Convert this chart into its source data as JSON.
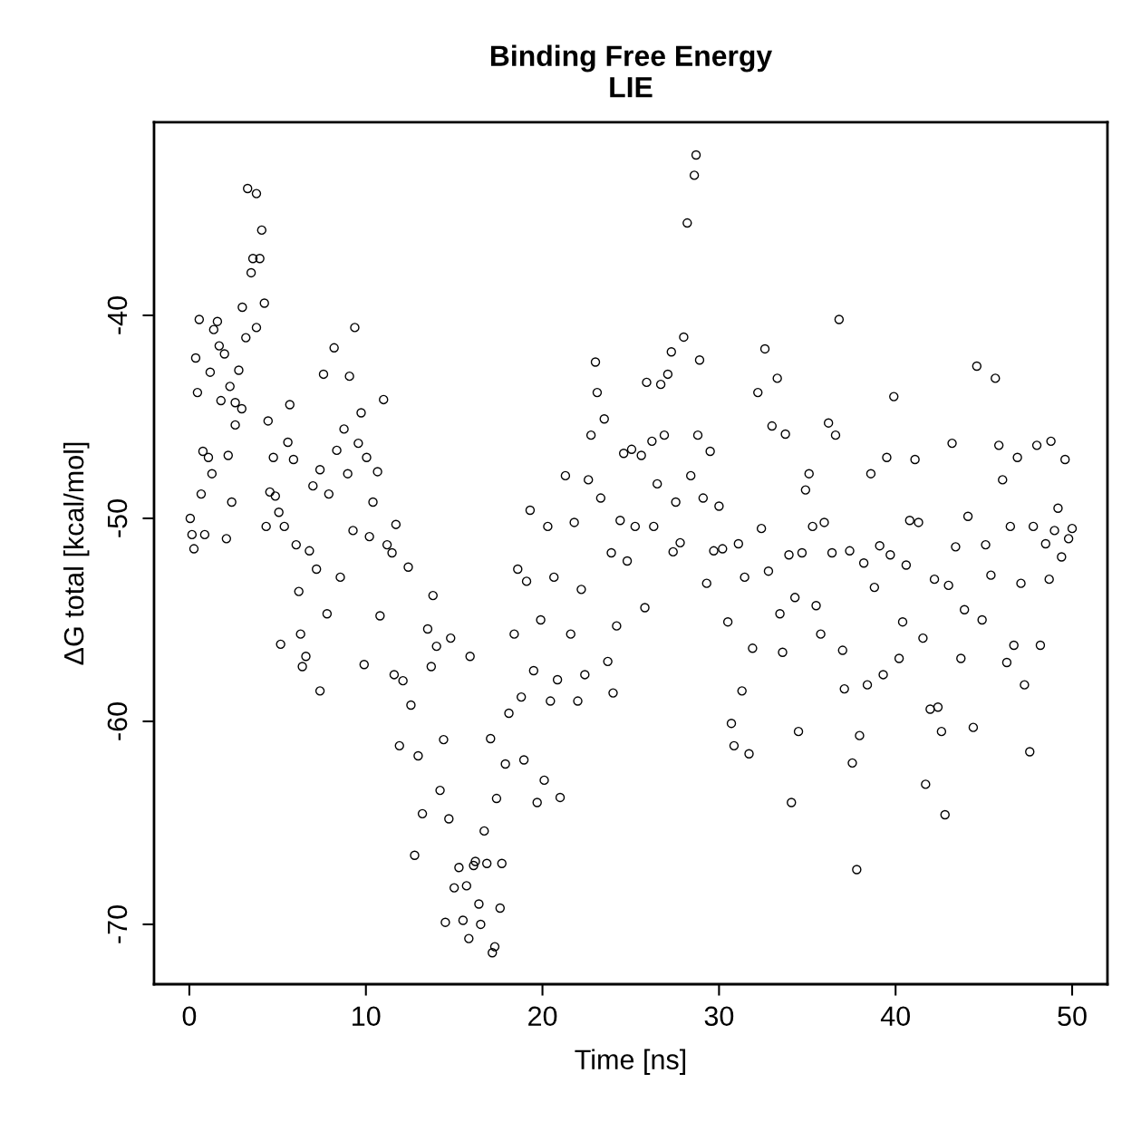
{
  "chart_data": {
    "type": "scatter",
    "title": "Binding Free Energy\nLIE",
    "xlabel": "Time [ns]",
    "ylabel": "ΔG total [kcal/mol]",
    "xlim": [
      -2,
      52
    ],
    "ylim": [
      -72.95,
      -30.49
    ],
    "xticks": [
      0,
      10,
      20,
      30,
      40,
      50
    ],
    "yticks": [
      {
        "value": -70,
        "label": "-70"
      },
      {
        "value": -60,
        "label": "-60"
      },
      {
        "value": -50,
        "label": "-50"
      },
      {
        "value": -40,
        "label": "-40"
      }
    ],
    "marker": "circle",
    "grid": false,
    "series": [
      {
        "color": "#000000",
        "x": [
          0.05,
          0.15,
          0.26,
          0.36,
          0.46,
          0.56,
          0.67,
          0.77,
          0.87,
          1.08,
          1.18,
          1.28,
          1.38,
          1.59,
          1.69,
          1.79,
          1.99,
          2.1,
          2.2,
          2.3,
          2.4,
          2.6,
          2.6,
          2.8,
          2.97,
          3.0,
          3.2,
          3.3,
          3.5,
          3.6,
          3.8,
          3.8,
          3.99,
          4.1,
          4.25,
          4.35,
          4.46,
          4.56,
          4.76,
          4.87,
          5.07,
          5.17,
          5.38,
          5.58,
          5.69,
          5.9,
          6.05,
          6.2,
          6.3,
          6.4,
          6.6,
          6.8,
          7.0,
          7.2,
          7.4,
          7.4,
          7.6,
          7.8,
          7.9,
          8.2,
          8.35,
          8.55,
          8.76,
          8.97,
          9.07,
          9.27,
          9.37,
          9.57,
          9.73,
          9.9,
          10.04,
          10.2,
          10.4,
          10.66,
          10.8,
          11.0,
          11.2,
          11.48,
          11.7,
          11.6,
          11.9,
          12.1,
          12.4,
          12.55,
          12.76,
          12.96,
          13.2,
          13.5,
          13.7,
          13.8,
          14.0,
          14.2,
          14.4,
          14.5,
          14.7,
          14.8,
          15.0,
          15.27,
          15.5,
          15.7,
          15.83,
          15.9,
          16.1,
          16.2,
          16.4,
          16.5,
          16.7,
          16.85,
          17.06,
          17.16,
          17.3,
          17.4,
          17.6,
          17.7,
          17.9,
          18.1,
          18.4,
          18.6,
          18.8,
          18.95,
          19.1,
          19.3,
          19.5,
          19.7,
          19.9,
          20.1,
          20.3,
          20.45,
          20.65,
          20.85,
          21.0,
          21.3,
          21.6,
          21.8,
          22.0,
          22.2,
          22.4,
          22.6,
          22.75,
          23.0,
          23.1,
          23.3,
          23.5,
          23.7,
          23.9,
          24.0,
          24.2,
          24.4,
          24.6,
          24.8,
          25.05,
          25.25,
          25.6,
          25.8,
          25.9,
          26.2,
          26.3,
          26.5,
          26.7,
          26.9,
          27.1,
          27.3,
          27.4,
          27.55,
          27.8,
          28.0,
          28.2,
          28.4,
          28.6,
          28.7,
          28.8,
          28.9,
          29.1,
          29.3,
          29.5,
          29.7,
          30.0,
          30.2,
          30.5,
          30.7,
          30.85,
          31.1,
          31.3,
          31.45,
          31.7,
          31.9,
          32.2,
          32.4,
          32.6,
          32.8,
          33.0,
          33.3,
          33.45,
          33.6,
          33.76,
          33.96,
          34.1,
          34.3,
          34.5,
          34.7,
          34.9,
          35.1,
          35.3,
          35.5,
          35.76,
          35.96,
          36.2,
          36.4,
          36.6,
          36.8,
          37.0,
          37.1,
          37.4,
          37.55,
          37.8,
          37.96,
          38.2,
          38.4,
          38.6,
          38.8,
          39.1,
          39.3,
          39.5,
          39.7,
          39.9,
          40.2,
          40.4,
          40.6,
          40.8,
          41.1,
          41.3,
          41.55,
          41.7,
          41.96,
          42.2,
          42.4,
          42.6,
          42.8,
          43.0,
          43.2,
          43.4,
          43.7,
          43.9,
          44.1,
          44.4,
          44.6,
          44.9,
          45.1,
          45.4,
          45.65,
          45.85,
          46.06,
          46.3,
          46.5,
          46.7,
          46.9,
          47.1,
          47.3,
          47.6,
          47.8,
          48.0,
          48.2,
          48.5,
          48.7,
          48.8,
          49.0,
          49.2,
          49.4,
          49.6,
          49.8,
          50.0
        ],
        "values": [
          -50.0,
          -50.8,
          -51.5,
          -42.1,
          -43.8,
          -40.2,
          -48.8,
          -46.7,
          -50.8,
          -47.0,
          -42.8,
          -47.8,
          -40.7,
          -40.3,
          -41.5,
          -44.2,
          -41.9,
          -51.0,
          -46.9,
          -43.5,
          -49.2,
          -44.3,
          -45.4,
          -42.7,
          -44.6,
          -39.6,
          -41.1,
          -33.75,
          -37.9,
          -37.2,
          -34.0,
          -40.6,
          -37.2,
          -35.8,
          -39.4,
          -50.4,
          -45.2,
          -48.7,
          -47.0,
          -48.9,
          -49.7,
          -56.2,
          -50.4,
          -46.25,
          -44.4,
          -47.1,
          -51.3,
          -53.6,
          -55.7,
          -57.3,
          -56.8,
          -51.6,
          -48.4,
          -52.5,
          -58.5,
          -47.6,
          -42.9,
          -54.7,
          -48.8,
          -41.6,
          -46.65,
          -52.9,
          -45.6,
          -47.8,
          -43.0,
          -50.6,
          -40.6,
          -46.3,
          -44.8,
          -57.2,
          -47.0,
          -50.9,
          -49.2,
          -47.7,
          -54.8,
          -44.15,
          -51.3,
          -51.7,
          -50.3,
          -57.7,
          -61.2,
          -58.0,
          -52.4,
          -59.2,
          -66.6,
          -61.7,
          -64.55,
          -55.45,
          -57.3,
          -53.8,
          -56.3,
          -63.4,
          -60.9,
          -69.9,
          -64.8,
          -55.9,
          -68.2,
          -67.2,
          -69.8,
          -68.1,
          -70.7,
          -56.8,
          -67.1,
          -66.9,
          -69.0,
          -70.0,
          -65.4,
          -67.0,
          -60.85,
          -71.4,
          -71.1,
          -63.8,
          -69.2,
          -67.0,
          -62.1,
          -59.6,
          -55.7,
          -52.5,
          -58.8,
          -61.9,
          -53.1,
          -49.6,
          -57.5,
          -64.0,
          -55.0,
          -62.9,
          -50.4,
          -59.0,
          -52.9,
          -57.95,
          -63.75,
          -47.9,
          -55.7,
          -50.2,
          -59.0,
          -53.5,
          -57.7,
          -48.1,
          -45.9,
          -42.3,
          -43.8,
          -49.0,
          -45.1,
          -57.05,
          -51.7,
          -58.6,
          -55.3,
          -50.1,
          -46.8,
          -52.1,
          -46.6,
          -50.4,
          -46.9,
          -54.4,
          -43.3,
          -46.2,
          -50.4,
          -48.3,
          -43.4,
          -45.9,
          -42.9,
          -41.8,
          -51.65,
          -49.2,
          -51.2,
          -41.07,
          -35.45,
          -47.9,
          -33.1,
          -32.1,
          -45.9,
          -42.2,
          -49.0,
          -53.2,
          -46.7,
          -51.6,
          -49.4,
          -51.5,
          -55.1,
          -60.1,
          -61.2,
          -51.25,
          -58.5,
          -52.9,
          -61.6,
          -56.4,
          -43.8,
          -50.5,
          -41.65,
          -52.6,
          -45.45,
          -43.1,
          -54.7,
          -56.6,
          -45.85,
          -51.8,
          -64.0,
          -53.9,
          -60.5,
          -51.7,
          -48.6,
          -47.8,
          -50.4,
          -54.3,
          -55.7,
          -50.2,
          -45.3,
          -51.7,
          -45.9,
          -40.2,
          -56.5,
          -58.4,
          -51.6,
          -62.05,
          -67.3,
          -60.7,
          -52.2,
          -58.2,
          -47.8,
          -53.4,
          -51.35,
          -57.7,
          -47.0,
          -51.8,
          -44.0,
          -56.9,
          -55.1,
          -52.3,
          -50.1,
          -47.1,
          -50.2,
          -55.9,
          -63.1,
          -59.4,
          -53.0,
          -59.3,
          -60.5,
          -64.6,
          -53.3,
          -46.3,
          -51.4,
          -56.9,
          -54.5,
          -49.9,
          -60.3,
          -42.5,
          -55.0,
          -51.3,
          -52.8,
          -43.1,
          -46.4,
          -48.1,
          -57.1,
          -50.4,
          -56.25,
          -47.0,
          -53.2,
          -58.2,
          -61.5,
          -50.4,
          -46.4,
          -56.25,
          -51.25,
          -53.0,
          -46.2,
          -50.6,
          -49.5,
          -51.9,
          -47.1,
          -51.0,
          -50.5
        ]
      }
    ]
  }
}
